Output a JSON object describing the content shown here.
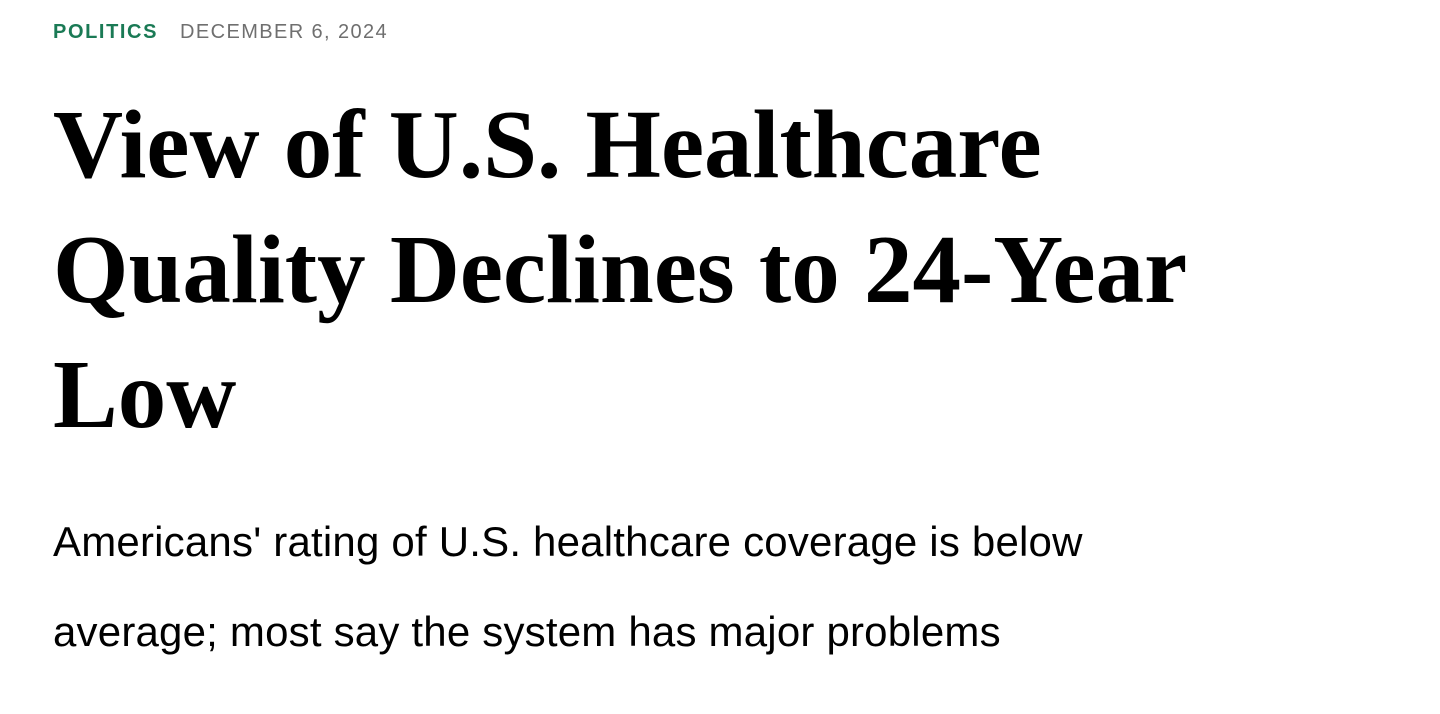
{
  "article": {
    "category": "POLITICS",
    "date": "DECEMBER 6, 2024",
    "headline": "View of U.S. Healthcare Quality Declines to 24-Year Low",
    "headline_lines": {
      "line1": "View of U.S. Healthcare",
      "line2": "Quality Declines to 24-Year",
      "line3": "Low"
    },
    "subtitle": "Americans' rating of U.S. healthcare coverage is below average; most say the system has major problems",
    "subtitle_lines": {
      "line1": "Americans' rating of U.S. healthcare coverage is below",
      "line2": "average; most say the system has major problems"
    },
    "colors": {
      "category_green": "#1A7A55",
      "date_gray": "#6F6F6F",
      "text_black": "#000000",
      "background": "#FFFFFF"
    }
  }
}
